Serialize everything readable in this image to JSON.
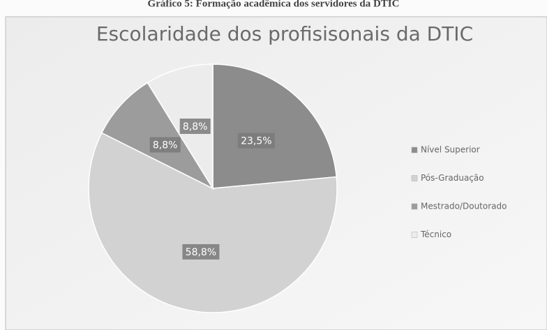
{
  "caption": "Gráfico 5: Formação acadêmica dos servidores da DTIC",
  "chart_data": {
    "type": "pie",
    "title": "Escolaridade dos profisisonais da DTIC",
    "categories": [
      "Nível Superior",
      "Pós-Graduação",
      "Mestrado/Doutorado",
      "Técnico"
    ],
    "values": [
      23.5,
      58.8,
      8.8,
      8.8
    ],
    "value_labels": [
      "23,5%",
      "58,8%",
      "8,8%",
      "8,8%"
    ],
    "colors": [
      "#8c8c8c",
      "#d2d2d2",
      "#9c9c9c",
      "#ececec"
    ],
    "legend": "right"
  }
}
